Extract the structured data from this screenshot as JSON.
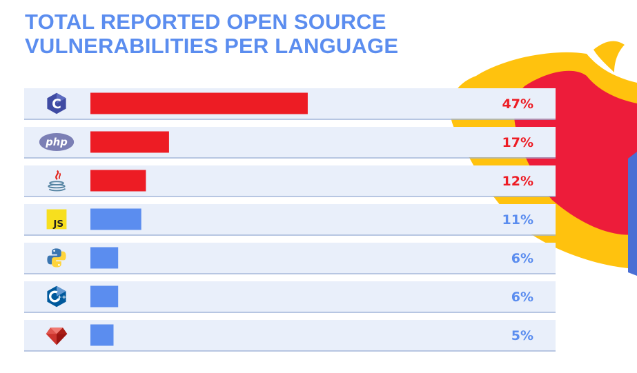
{
  "header": {
    "title_line1": "TOTAL REPORTED OPEN SOURCE",
    "title_line2": "VULNERABILITIES PER LANGUAGE"
  },
  "colors": {
    "title": "#5b8def",
    "highlight_bar": "#ed1c24",
    "normal_bar": "#5b8def",
    "row_background": "#e9effa",
    "decor_yellow": "#ffc20e",
    "decor_red": "#ed1c3a",
    "decor_blue": "#4a6fd4"
  },
  "chart_data": {
    "type": "bar",
    "orientation": "horizontal",
    "categories": [
      "C",
      "PHP",
      "Java",
      "JavaScript",
      "Python",
      "C++",
      "Ruby"
    ],
    "category_icons": [
      "c-logo-icon",
      "php-logo-icon",
      "java-logo-icon",
      "javascript-logo-icon",
      "python-logo-icon",
      "cpp-logo-icon",
      "ruby-logo-icon"
    ],
    "values": [
      47,
      17,
      12,
      11,
      6,
      6,
      5
    ],
    "labels": [
      "47%",
      "17%",
      "12%",
      "11%",
      "6%",
      "6%",
      "5%"
    ],
    "highlighted": [
      true,
      true,
      true,
      false,
      false,
      false,
      false
    ],
    "xlim": [
      0,
      100
    ],
    "unit": "%",
    "grid": false,
    "legend": "none"
  }
}
